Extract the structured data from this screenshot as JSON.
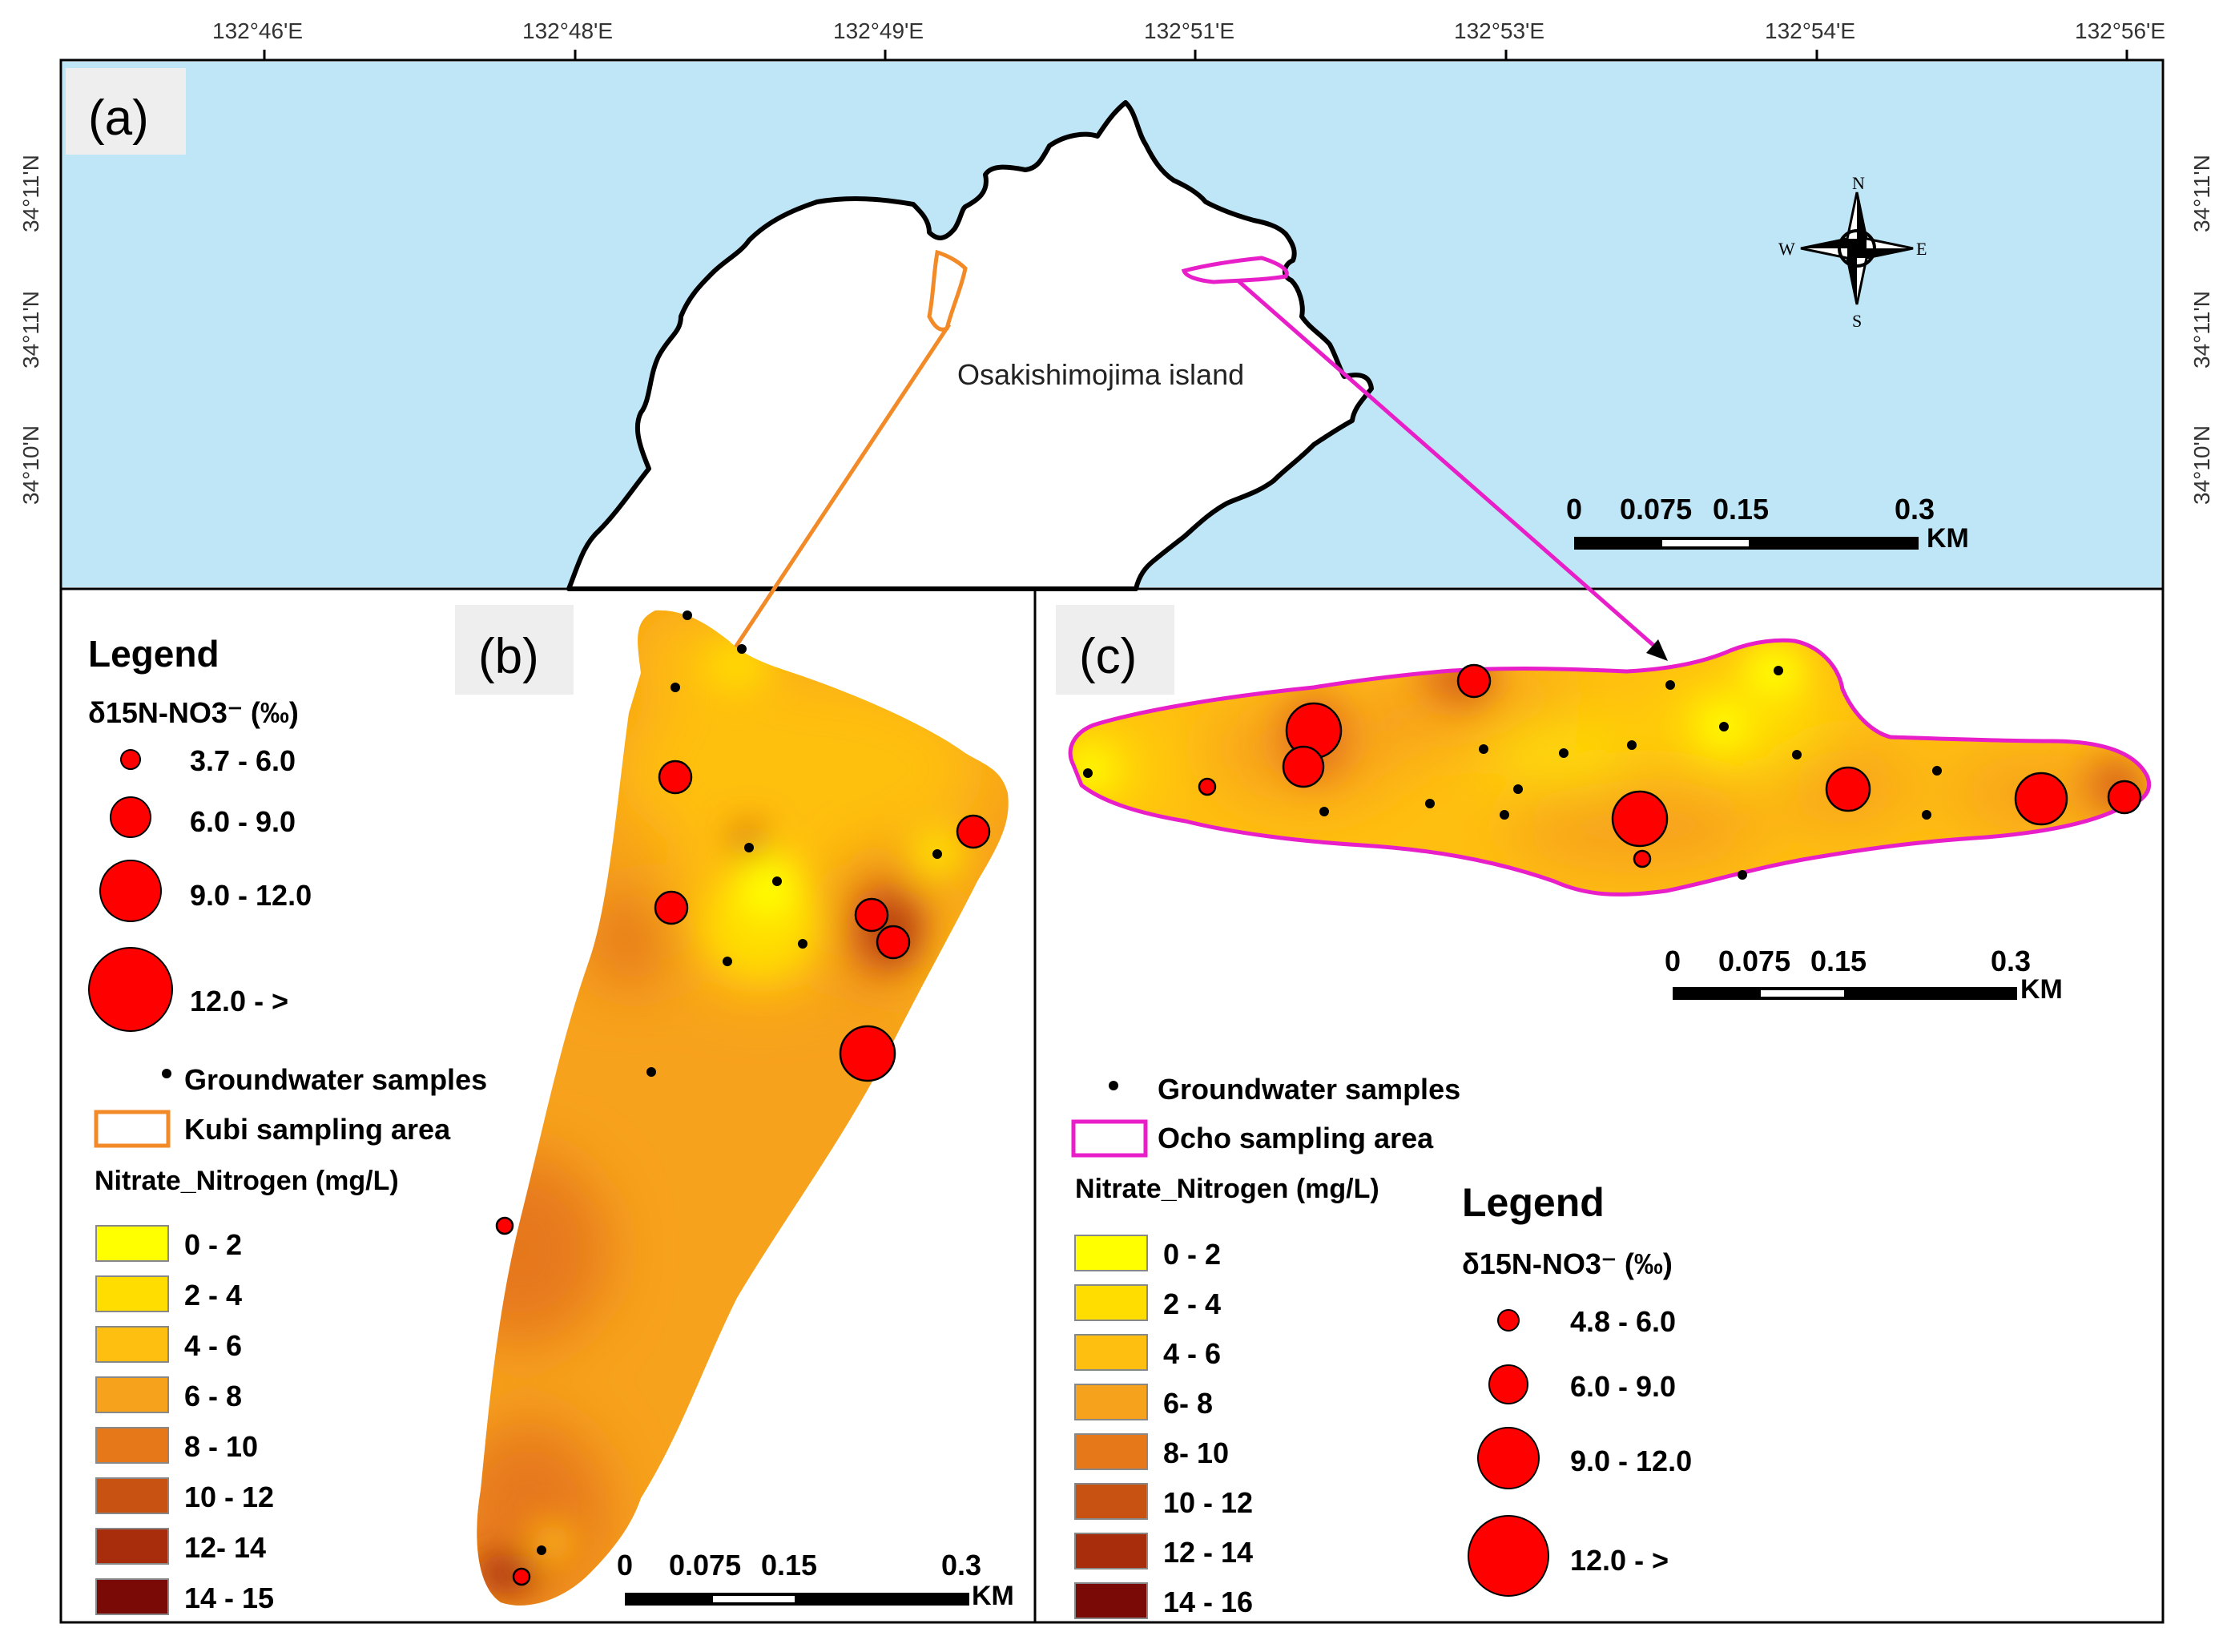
{
  "top_axis_labels": [
    "132°46'E",
    "132°48'E",
    "132°49'E",
    "132°51'E",
    "132°53'E",
    "132°54'E",
    "132°56'E"
  ],
  "side_axis_labels": [
    "34°11'N",
    "34°11'N",
    "34°10'N"
  ],
  "panel_a": {
    "tag": "(a)",
    "island_label": "Osakishimojima island",
    "compass": {
      "n": "N",
      "s": "S",
      "e": "E",
      "w": "W"
    },
    "scale": {
      "ticks": [
        "0",
        "0.075",
        "0.15",
        "0.3"
      ],
      "unit": "KM"
    }
  },
  "panel_b": {
    "tag": "(b)",
    "legend_title": "Legend",
    "d15n_title": "δ15N-NO3⁻ (‰)",
    "d15n_classes": [
      "3.7 - 6.0",
      "6.0 - 9.0",
      "9.0 - 12.0",
      "12.0 - >"
    ],
    "groundwater_label": "Groundwater samples",
    "area_label": "Kubi sampling area",
    "nitrate_title": "Nitrate_Nitrogen (mg/L)",
    "nitrate_classes": [
      {
        "label": "0 - 2",
        "color": "#ffff00"
      },
      {
        "label": "2 - 4",
        "color": "#ffdd00"
      },
      {
        "label": "4 - 6",
        "color": "#ffbf10"
      },
      {
        "label": "6 - 8",
        "color": "#f7a21c"
      },
      {
        "label": "8 - 10",
        "color": "#e6781a"
      },
      {
        "label": "10 - 12",
        "color": "#c85212"
      },
      {
        "label": "12- 14",
        "color": "#a82d0c"
      },
      {
        "label": "14 - 15",
        "color": "#7a0a05"
      }
    ],
    "scale": {
      "ticks": [
        "0",
        "0.075",
        "0.15",
        "0.3"
      ],
      "unit": "KM"
    }
  },
  "panel_c": {
    "tag": "(c)",
    "legend_title": "Legend",
    "d15n_title": "δ15N-NO3⁻ (‰)",
    "d15n_classes": [
      "4.8 - 6.0",
      "6.0 - 9.0",
      "9.0 - 12.0",
      "12.0 - >"
    ],
    "groundwater_label": "Groundwater samples",
    "area_label": "Ocho sampling area",
    "nitrate_title": "Nitrate_Nitrogen (mg/L)",
    "nitrate_classes": [
      {
        "label": "0 - 2",
        "color": "#ffff00"
      },
      {
        "label": "2 - 4",
        "color": "#ffdd00"
      },
      {
        "label": "4 - 6",
        "color": "#ffbf10"
      },
      {
        "label": "6- 8",
        "color": "#f7a21c"
      },
      {
        "label": "8- 10",
        "color": "#e6781a"
      },
      {
        "label": "10 - 12",
        "color": "#c85212"
      },
      {
        "label": "12 - 14",
        "color": "#a82d0c"
      },
      {
        "label": "14 - 16",
        "color": "#7a0a05"
      }
    ],
    "scale": {
      "ticks": [
        "0",
        "0.075",
        "0.15",
        "0.3"
      ],
      "unit": "KM"
    }
  },
  "colors": {
    "sea": "#bfe6f7",
    "kubi_outline": "#f28a28",
    "ocho_outline": "#e81ec8",
    "circle_fill": "#ff0000"
  }
}
